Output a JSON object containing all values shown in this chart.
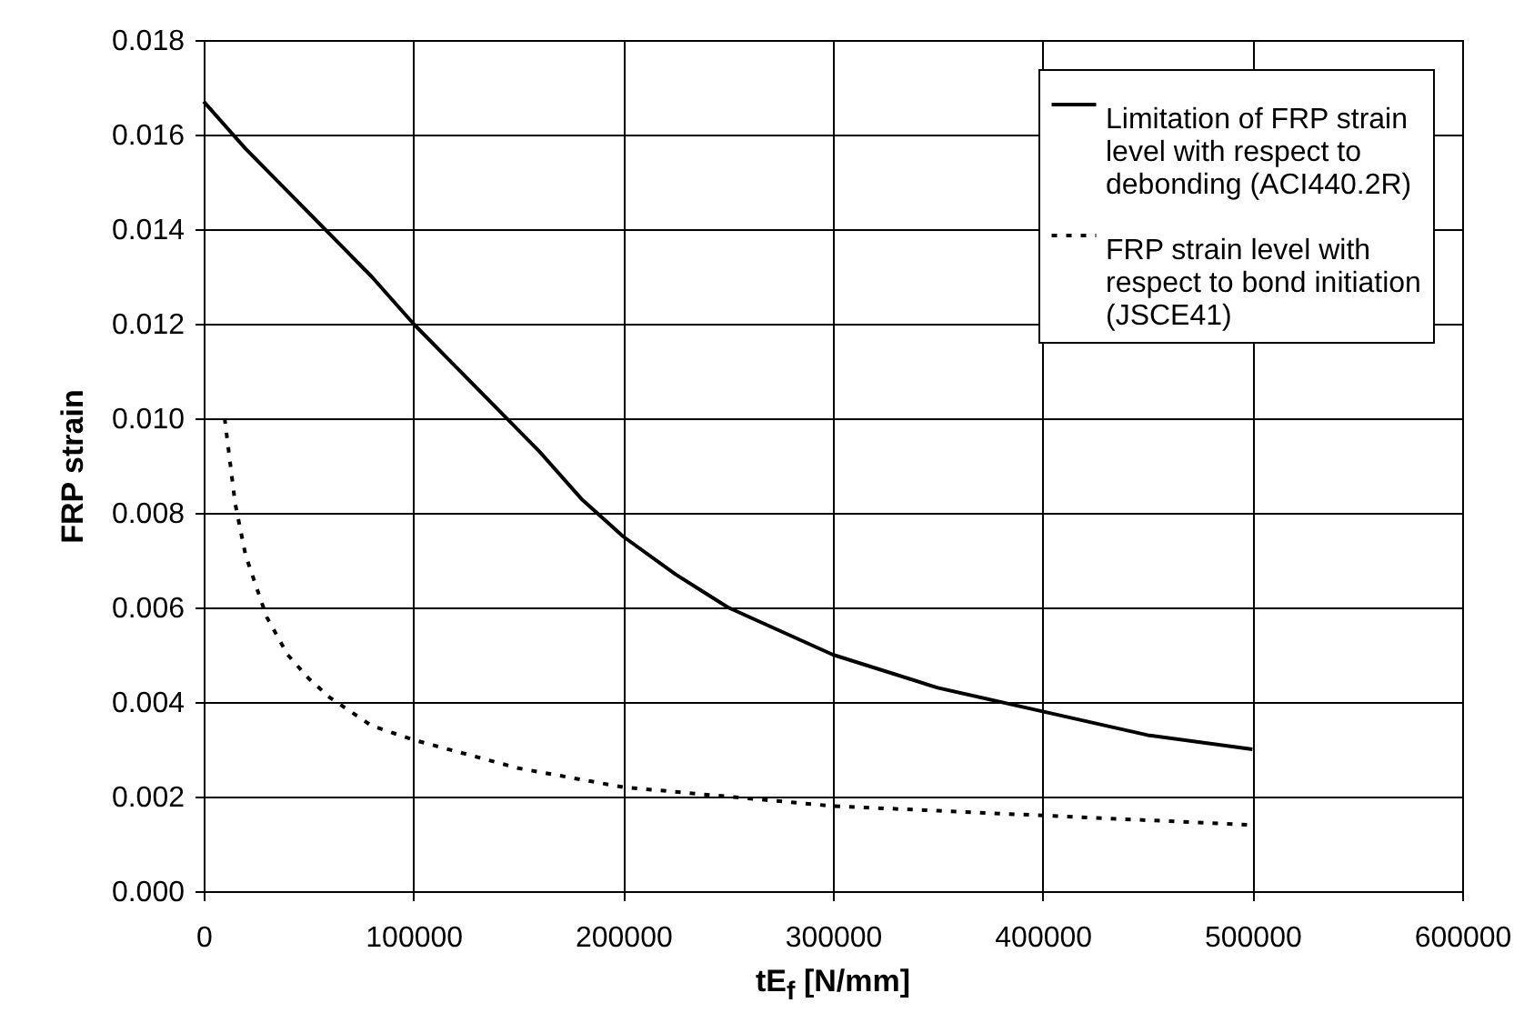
{
  "chart_data": {
    "type": "line",
    "xlabel": "tE$_{f}$ [N/mm]",
    "ylabel": "FRP strain",
    "xlim": [
      0,
      600000
    ],
    "xticks": [
      0,
      100000,
      200000,
      300000,
      400000,
      500000,
      600000
    ],
    "ylim": [
      0,
      0.018
    ],
    "yticks": [
      {
        "value": 0,
        "label": "0.000"
      },
      {
        "value": 0.002,
        "label": "0.002"
      },
      {
        "value": 0.004,
        "label": "0.004"
      },
      {
        "value": 0.006,
        "label": "0.006"
      },
      {
        "value": 0.008,
        "label": "0.008"
      },
      {
        "value": 0.01,
        "label": "0.010"
      },
      {
        "value": 0.012,
        "label": "0.012"
      },
      {
        "value": 0.014,
        "label": "0.014"
      },
      {
        "value": 0.016,
        "label": "0.016"
      },
      {
        "value": 0.018,
        "label": "0.018"
      }
    ],
    "grid": true,
    "legend": "top right",
    "marker": "none",
    "series": [
      {
        "name": "Limitation of FRP strain level with respect to debonding (ACI440.2R)",
        "color": "#000000",
        "line_style": "solid",
        "x": [
          0,
          20000,
          40000,
          60000,
          80000,
          100000,
          120000,
          140000,
          160000,
          180000,
          200000,
          225000,
          250000,
          300000,
          350000,
          400000,
          450000,
          500000
        ],
        "values": [
          0.0167,
          0.0157,
          0.0148,
          0.0139,
          0.013,
          0.012,
          0.0111,
          0.0102,
          0.0093,
          0.0083,
          0.0075,
          0.0067,
          0.006,
          0.005,
          0.0043,
          0.0038,
          0.0033,
          0.003
        ]
      },
      {
        "name": "FRP strain level with respect to bond initiation (JSCE41)",
        "color": "#000000",
        "line_style": "dotted",
        "x": [
          10000,
          15000,
          20000,
          30000,
          40000,
          50000,
          60000,
          80000,
          100000,
          150000,
          200000,
          250000,
          300000,
          350000,
          400000,
          450000,
          500000
        ],
        "values": [
          0.01,
          0.0082,
          0.0071,
          0.0058,
          0.005,
          0.0045,
          0.0041,
          0.0035,
          0.0032,
          0.0026,
          0.0022,
          0.002,
          0.0018,
          0.0017,
          0.0016,
          0.0015,
          0.0014
        ]
      }
    ]
  }
}
